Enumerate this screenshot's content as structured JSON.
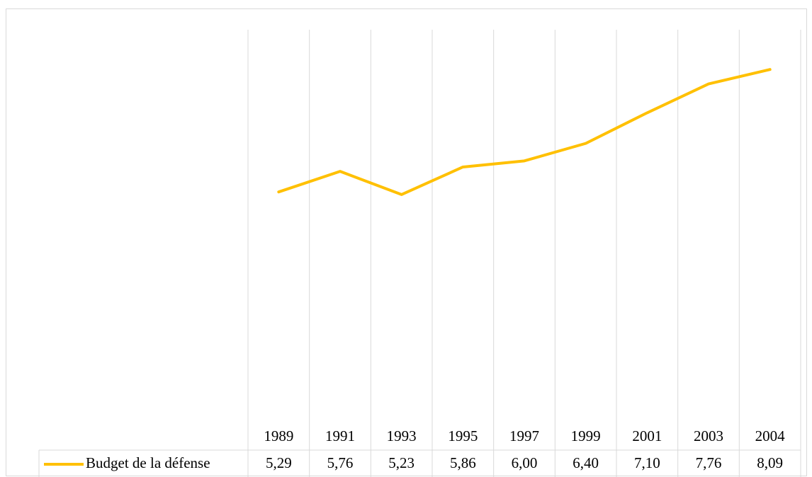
{
  "chart_data": {
    "type": "line",
    "categories": [
      "1989",
      "1991",
      "1993",
      "1995",
      "1997",
      "1999",
      "2001",
      "2003",
      "2004"
    ],
    "series": [
      {
        "name": "Budget de la défense",
        "color": "#ffc000",
        "values": [
          5.29,
          5.76,
          5.23,
          5.86,
          6.0,
          6.4,
          7.1,
          7.76,
          8.09
        ],
        "value_labels": [
          "5,29",
          "5,76",
          "5,23",
          "5,86",
          "6,00",
          "6,40",
          "7,10",
          "7,76",
          "8,09"
        ]
      }
    ],
    "ylim": [
      0,
      9
    ]
  }
}
